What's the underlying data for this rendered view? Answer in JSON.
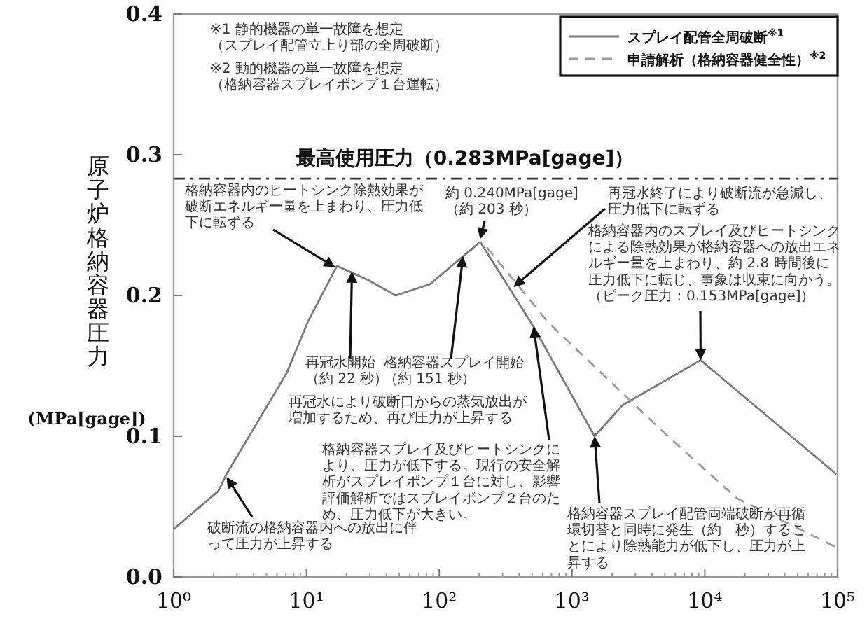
{
  "chart_data": {
    "type": "line",
    "ylabel": "原子炉格納容器圧力\n(MPa[gage])",
    "log": "x",
    "xlim": [
      1,
      100000
    ],
    "xticks": [
      {
        "value": 1,
        "label": "10⁰"
      },
      {
        "value": 10,
        "label": "10¹"
      },
      {
        "value": 100,
        "label": "10²"
      },
      {
        "value": 1000,
        "label": "10³"
      },
      {
        "value": 10000,
        "label": "10⁴"
      },
      {
        "value": 100000,
        "label": "10⁵"
      }
    ],
    "ylim": [
      0,
      0.4
    ],
    "yticks": [
      {
        "value": 0,
        "label": "0.0"
      },
      {
        "value": 0.1,
        "label": "0.1"
      },
      {
        "value": 0.2,
        "label": "0.2"
      },
      {
        "value": 0.3,
        "label": "0.3"
      },
      {
        "value": 0.4,
        "label": "0.4"
      }
    ],
    "grid": false,
    "legend": "top right",
    "marker": "none",
    "series": [
      {
        "name": "スプレイ配管全周破断$^{※1}$",
        "color": "#7a7a7a",
        "line_style": "solid",
        "x": [
          1,
          2.17,
          2.5,
          7.1,
          10.2,
          17,
          29,
          47,
          85,
          203,
          513,
          1480,
          2400,
          9300,
          98000
        ],
        "values": [
          0.034,
          0.061,
          0.073,
          0.145,
          0.181,
          0.221,
          0.211,
          0.2,
          0.208,
          0.238,
          0.178,
          0.1,
          0.122,
          0.154,
          0.073
        ]
      },
      {
        "name": "申請解析（格納容器健全性）$^{※2}$",
        "color": "#9a9a9a",
        "line_style": "dashed",
        "x": [
          229,
          660,
          5000,
          17400,
          98000
        ],
        "values": [
          0.234,
          0.181,
          0.102,
          0.056,
          0.021
        ]
      }
    ],
    "ref_lines": [
      {
        "axis": "y",
        "value": 0.283,
        "label": "最高使用圧力（0.283MPa[gage]）",
        "color": "#333333",
        "line_style": "dashdot"
      }
    ],
    "annotations": [
      "※1 静的機器の単一故障を想定（スプレイ配管立上り部の全周破断）",
      "※2 動的機器の単一故障を想定（格納容器スプレイポンプ１台運転）",
      {
        "text": "格納容器内のヒートシンク除熱効果が破断エネルギー量を上まわり、圧力低下に転ずる",
        "x": 16.5,
        "y": 0.22
      },
      {
        "text": "再冠水開始（約 22 秒）",
        "x": 22,
        "y": 0.217
      },
      {
        "text": "格納容器スプレイ開始（約 151 秒）",
        "x": 151,
        "y": 0.228
      },
      {
        "text": "約 0.240MPa[gage]（約 203 秒）",
        "x": 203,
        "y": 0.24
      },
      {
        "text": "再冠水終了により破断流が急減し、圧力低下に転ずる",
        "x": 363,
        "y": 0.206
      },
      {
        "text": "格納容器内のスプレイ及びヒートシンクによる除熱効果が格納容器への放出エネルギー量を上まわり、約 2.8 時間後に圧力低下に転じ、事象は収束に向かう。（ピーク圧力：0.153MPa[gage]）",
        "x": 9300,
        "y": 0.154
      },
      "再冠水により破断口からの蒸気放出が増加するため、再び圧力が上昇する",
      {
        "text": "格納容器スプレイ及びヒートシンクにより、圧力が低下する。現行の安全解析がスプレイポンプ１台に対し、影響評価解析ではスプレイポンプ２台のため、圧力低下が大きい。",
        "x": 513,
        "y": 0.178
      },
      {
        "text": "格納容器スプレイ配管両端破断が再循環切替と同時に発生（約　秒）することにより除熱能力が低下し、圧力が上昇する",
        "x": 1480,
        "y": 0.1
      },
      {
        "text": "破断流の格納容器内への放出に伴って圧力が上昇する",
        "x": 2.5,
        "y": 0.071
      }
    ]
  }
}
